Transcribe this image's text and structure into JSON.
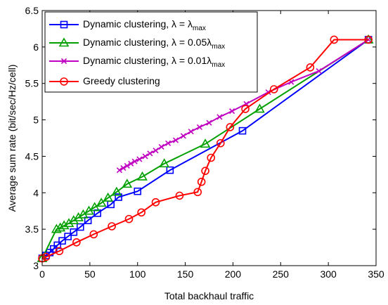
{
  "chart_data": {
    "type": "line",
    "title": "",
    "xlabel": "Total backhaul traffic",
    "ylabel": "Average sum rate (bit/sec/Hz/cell)",
    "xlim": [
      0,
      350
    ],
    "ylim": [
      3,
      6.5
    ],
    "xticks": [
      0,
      50,
      100,
      150,
      200,
      250,
      300,
      350
    ],
    "yticks": [
      3,
      3.5,
      4,
      4.5,
      5,
      5.5,
      6,
      6.5
    ],
    "xtick_labels": [
      "0",
      "50",
      "100",
      "150",
      "200",
      "250",
      "300",
      "350"
    ],
    "ytick_labels": [
      "3",
      "3.5",
      "4",
      "4.5",
      "5",
      "5.5",
      "6",
      "6.5"
    ],
    "grid": false,
    "legend_position": "top-left",
    "series": [
      {
        "name": "Dynamic clustering, λ = λmax",
        "legend": {
          "prefix": "Dynamic clustering, λ = λ",
          "sub": "max"
        },
        "color": "#0000ff",
        "marker": "square",
        "points": [
          [
            0,
            3.1
          ],
          [
            4,
            3.14
          ],
          [
            8,
            3.18
          ],
          [
            12,
            3.23
          ],
          [
            16,
            3.28
          ],
          [
            21,
            3.34
          ],
          [
            27,
            3.4
          ],
          [
            33,
            3.46
          ],
          [
            40,
            3.53
          ],
          [
            48,
            3.62
          ],
          [
            58,
            3.72
          ],
          [
            72,
            3.84
          ],
          [
            80,
            3.94
          ],
          [
            100,
            4.02
          ],
          [
            134,
            4.31
          ],
          [
            210,
            4.85
          ],
          [
            342,
            6.1
          ]
        ]
      },
      {
        "name": "Dynamic clustering, λ = 0.05λmax",
        "legend": {
          "prefix": "Dynamic clustering, λ = 0.05λ",
          "sub": "max"
        },
        "color": "#00a000",
        "marker": "triangle",
        "points": [
          [
            0,
            3.1
          ],
          [
            15,
            3.5
          ],
          [
            19,
            3.52
          ],
          [
            23,
            3.55
          ],
          [
            28,
            3.58
          ],
          [
            33,
            3.62
          ],
          [
            38,
            3.66
          ],
          [
            43,
            3.7
          ],
          [
            49,
            3.75
          ],
          [
            55,
            3.8
          ],
          [
            62,
            3.86
          ],
          [
            69,
            3.93
          ],
          [
            78,
            4.01
          ],
          [
            89,
            4.12
          ],
          [
            105,
            4.22
          ],
          [
            128,
            4.4
          ],
          [
            171,
            4.67
          ],
          [
            228,
            5.15
          ],
          [
            342,
            6.1
          ]
        ]
      },
      {
        "name": "Dynamic clustering, λ = 0.01λmax",
        "legend": {
          "prefix": "Dynamic clustering, λ = 0.01λ",
          "sub": "max"
        },
        "color": "#c000c0",
        "marker": "x",
        "points": [
          [
            81,
            4.31
          ],
          [
            85,
            4.34
          ],
          [
            89,
            4.37
          ],
          [
            93,
            4.4
          ],
          [
            97,
            4.43
          ],
          [
            102,
            4.46
          ],
          [
            108,
            4.5
          ],
          [
            113,
            4.54
          ],
          [
            119,
            4.58
          ],
          [
            125,
            4.63
          ],
          [
            132,
            4.68
          ],
          [
            140,
            4.72
          ],
          [
            148,
            4.78
          ],
          [
            156,
            4.84
          ],
          [
            165,
            4.9
          ],
          [
            175,
            4.96
          ],
          [
            186,
            5.04
          ],
          [
            199,
            5.12
          ],
          [
            214,
            5.22
          ],
          [
            237,
            5.38
          ],
          [
            261,
            5.52
          ],
          [
            290,
            5.67
          ],
          [
            342,
            6.1
          ]
        ]
      },
      {
        "name": "Greedy clustering",
        "legend": {
          "prefix": "Greedy clustering",
          "sub": ""
        },
        "color": "#ff0000",
        "marker": "circle",
        "points": [
          [
            0,
            3.1
          ],
          [
            4,
            3.12
          ],
          [
            18,
            3.2
          ],
          [
            36,
            3.32
          ],
          [
            54,
            3.43
          ],
          [
            73,
            3.54
          ],
          [
            91,
            3.64
          ],
          [
            104,
            3.73
          ],
          [
            119,
            3.87
          ],
          [
            144,
            3.96
          ],
          [
            163,
            4.01
          ],
          [
            167,
            4.15
          ],
          [
            171,
            4.3
          ],
          [
            177,
            4.48
          ],
          [
            187,
            4.68
          ],
          [
            197,
            4.9
          ],
          [
            213,
            5.15
          ],
          [
            243,
            5.42
          ],
          [
            281,
            5.72
          ],
          [
            306,
            6.1
          ],
          [
            342,
            6.1
          ]
        ]
      }
    ]
  }
}
